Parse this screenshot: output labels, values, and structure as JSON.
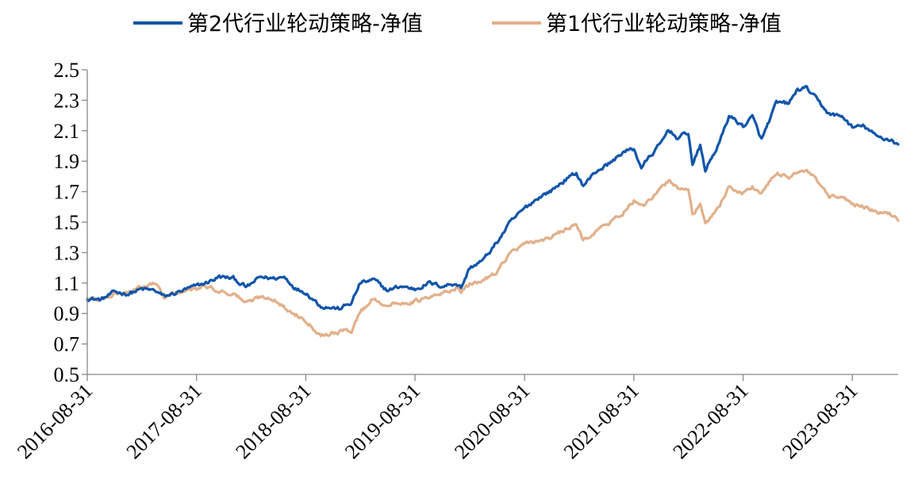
{
  "chart_data": {
    "type": "line",
    "title": "",
    "xlabel": "",
    "ylabel": "",
    "ylim": [
      0.5,
      2.5
    ],
    "yticks": [
      "0.5",
      "0.7",
      "0.9",
      "1.1",
      "1.3",
      "1.5",
      "1.7",
      "1.9",
      "2.1",
      "2.3",
      "2.5"
    ],
    "xticks": [
      "2016-08-31",
      "2017-08-31",
      "2018-08-31",
      "2019-08-31",
      "2020-08-31",
      "2021-08-31",
      "2022-08-31",
      "2023-08-31"
    ],
    "x_range": [
      "2016-08-31",
      "2024-01-31"
    ],
    "legend_position": "top",
    "grid": false,
    "series": [
      {
        "name": "第2代行业轮动策略-净值",
        "color": "#1155AA",
        "points": [
          [
            "2016-08-31",
            1.0
          ],
          [
            "2016-10-15",
            0.99
          ],
          [
            "2016-12-01",
            1.04
          ],
          [
            "2017-01-15",
            1.03
          ],
          [
            "2017-03-01",
            1.06
          ],
          [
            "2017-04-15",
            1.05
          ],
          [
            "2017-05-15",
            1.01
          ],
          [
            "2017-07-01",
            1.04
          ],
          [
            "2017-08-31",
            1.08
          ],
          [
            "2017-10-01",
            1.1
          ],
          [
            "2017-11-15",
            1.14
          ],
          [
            "2018-01-01",
            1.13
          ],
          [
            "2018-02-15",
            1.07
          ],
          [
            "2018-04-01",
            1.14
          ],
          [
            "2018-05-15",
            1.13
          ],
          [
            "2018-06-20",
            1.14
          ],
          [
            "2018-08-01",
            1.06
          ],
          [
            "2018-08-31",
            1.04
          ],
          [
            "2018-10-20",
            0.95
          ],
          [
            "2018-12-20",
            0.93
          ],
          [
            "2019-01-31",
            0.97
          ],
          [
            "2019-03-01",
            1.1
          ],
          [
            "2019-04-15",
            1.12
          ],
          [
            "2019-06-01",
            1.05
          ],
          [
            "2019-07-15",
            1.08
          ],
          [
            "2019-08-31",
            1.06
          ],
          [
            "2019-10-15",
            1.1
          ],
          [
            "2019-12-01",
            1.08
          ],
          [
            "2020-01-15",
            1.1
          ],
          [
            "2020-02-01",
            1.07
          ],
          [
            "2020-03-01",
            1.2
          ],
          [
            "2020-04-15",
            1.25
          ],
          [
            "2020-06-01",
            1.37
          ],
          [
            "2020-07-15",
            1.5
          ],
          [
            "2020-08-31",
            1.59
          ],
          [
            "2020-10-15",
            1.66
          ],
          [
            "2020-12-01",
            1.71
          ],
          [
            "2021-01-15",
            1.78
          ],
          [
            "2021-02-20",
            1.82
          ],
          [
            "2021-03-15",
            1.74
          ],
          [
            "2021-05-01",
            1.84
          ],
          [
            "2021-06-15",
            1.89
          ],
          [
            "2021-07-25",
            1.96
          ],
          [
            "2021-08-31",
            1.98
          ],
          [
            "2021-09-25",
            1.86
          ],
          [
            "2021-10-20",
            1.92
          ],
          [
            "2021-12-01",
            2.02
          ],
          [
            "2021-12-25",
            2.11
          ],
          [
            "2022-01-25",
            2.05
          ],
          [
            "2022-03-01",
            2.09
          ],
          [
            "2022-03-15",
            1.88
          ],
          [
            "2022-04-10",
            2.0
          ],
          [
            "2022-04-27",
            1.84
          ],
          [
            "2022-06-15",
            2.03
          ],
          [
            "2022-07-15",
            2.2
          ],
          [
            "2022-08-31",
            2.13
          ],
          [
            "2022-10-01",
            2.19
          ],
          [
            "2022-11-01",
            2.04
          ],
          [
            "2022-12-20",
            2.28
          ],
          [
            "2023-01-31",
            2.28
          ],
          [
            "2023-03-01",
            2.37
          ],
          [
            "2023-04-01",
            2.38
          ],
          [
            "2023-05-01",
            2.31
          ],
          [
            "2023-06-15",
            2.21
          ],
          [
            "2023-08-01",
            2.19
          ],
          [
            "2023-08-31",
            2.12
          ],
          [
            "2023-10-10",
            2.13
          ],
          [
            "2023-11-20",
            2.06
          ],
          [
            "2024-01-10",
            2.04
          ],
          [
            "2024-01-31",
            2.01
          ]
        ]
      },
      {
        "name": "第1代行业轮动策略-净值",
        "color": "#E2B08A",
        "points": [
          [
            "2016-08-31",
            1.0
          ],
          [
            "2016-10-15",
            0.99
          ],
          [
            "2016-12-01",
            1.03
          ],
          [
            "2017-01-15",
            1.04
          ],
          [
            "2017-03-01",
            1.07
          ],
          [
            "2017-04-15",
            1.1
          ],
          [
            "2017-05-15",
            1.0
          ],
          [
            "2017-07-01",
            1.04
          ],
          [
            "2017-08-31",
            1.06
          ],
          [
            "2017-10-01",
            1.08
          ],
          [
            "2017-11-15",
            1.05
          ],
          [
            "2018-01-01",
            1.03
          ],
          [
            "2018-02-15",
            0.97
          ],
          [
            "2018-04-01",
            1.01
          ],
          [
            "2018-05-15",
            1.0
          ],
          [
            "2018-07-01",
            0.92
          ],
          [
            "2018-08-31",
            0.86
          ],
          [
            "2018-10-20",
            0.76
          ],
          [
            "2018-12-20",
            0.78
          ],
          [
            "2019-01-31",
            0.79
          ],
          [
            "2019-03-01",
            0.91
          ],
          [
            "2019-04-15",
            1.0
          ],
          [
            "2019-06-01",
            0.95
          ],
          [
            "2019-07-15",
            0.97
          ],
          [
            "2019-08-31",
            0.98
          ],
          [
            "2019-10-15",
            1.0
          ],
          [
            "2019-12-01",
            1.03
          ],
          [
            "2020-01-15",
            1.07
          ],
          [
            "2020-02-01",
            1.04
          ],
          [
            "2020-03-01",
            1.09
          ],
          [
            "2020-04-15",
            1.12
          ],
          [
            "2020-06-01",
            1.18
          ],
          [
            "2020-07-15",
            1.3
          ],
          [
            "2020-08-31",
            1.35
          ],
          [
            "2020-10-15",
            1.38
          ],
          [
            "2020-12-01",
            1.4
          ],
          [
            "2021-01-15",
            1.45
          ],
          [
            "2021-02-20",
            1.48
          ],
          [
            "2021-03-15",
            1.38
          ],
          [
            "2021-05-01",
            1.45
          ],
          [
            "2021-06-15",
            1.5
          ],
          [
            "2021-07-25",
            1.56
          ],
          [
            "2021-08-31",
            1.64
          ],
          [
            "2021-09-25",
            1.6
          ],
          [
            "2021-10-20",
            1.63
          ],
          [
            "2021-12-01",
            1.72
          ],
          [
            "2021-12-25",
            1.77
          ],
          [
            "2022-01-25",
            1.73
          ],
          [
            "2022-03-01",
            1.72
          ],
          [
            "2022-03-15",
            1.55
          ],
          [
            "2022-04-10",
            1.61
          ],
          [
            "2022-04-27",
            1.48
          ],
          [
            "2022-06-15",
            1.62
          ],
          [
            "2022-07-15",
            1.73
          ],
          [
            "2022-08-31",
            1.69
          ],
          [
            "2022-10-01",
            1.73
          ],
          [
            "2022-11-01",
            1.69
          ],
          [
            "2022-12-20",
            1.82
          ],
          [
            "2023-01-31",
            1.8
          ],
          [
            "2023-03-01",
            1.83
          ],
          [
            "2023-04-01",
            1.83
          ],
          [
            "2023-05-01",
            1.78
          ],
          [
            "2023-06-15",
            1.66
          ],
          [
            "2023-08-01",
            1.66
          ],
          [
            "2023-08-31",
            1.62
          ],
          [
            "2023-10-10",
            1.6
          ],
          [
            "2023-11-20",
            1.56
          ],
          [
            "2024-01-10",
            1.55
          ],
          [
            "2024-01-31",
            1.51
          ]
        ]
      }
    ]
  }
}
